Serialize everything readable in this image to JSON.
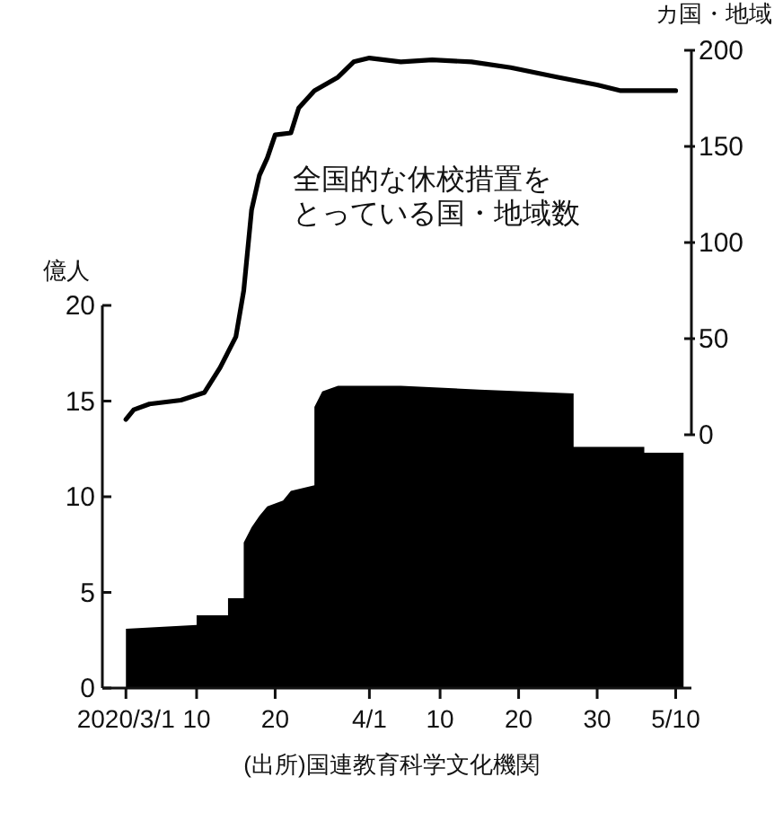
{
  "chart_data": {
    "type": "area",
    "ylabel": "億人",
    "y2label": "カ国・地域",
    "xlim": [
      "2020-02-27",
      "2020-05-12"
    ],
    "xticks": [
      {
        "value": "2020-03-01",
        "label": "2020/3/1"
      },
      {
        "value": "2020-03-10",
        "label": "10"
      },
      {
        "value": "2020-03-20",
        "label": "20"
      },
      {
        "value": "2020-04-01",
        "label": "4/1"
      },
      {
        "value": "2020-04-10",
        "label": "10"
      },
      {
        "value": "2020-04-20",
        "label": "20"
      },
      {
        "value": "2020-04-30",
        "label": "30"
      },
      {
        "value": "2020-05-10",
        "label": "5/10"
      }
    ],
    "ylim": [
      0,
      20
    ],
    "yticks": [
      0,
      5,
      10,
      15,
      20
    ],
    "y2lim": [
      0,
      200
    ],
    "y2ticks": [
      0,
      50,
      100,
      150,
      200
    ],
    "series": [
      {
        "color": "#000000",
        "x": [
          "2020-03-01",
          "2020-03-10",
          "2020-03-10",
          "2020-03-14",
          "2020-03-14",
          "2020-03-16",
          "2020-03-16",
          "2020-03-17",
          "2020-03-18",
          "2020-03-19",
          "2020-03-21",
          "2020-03-22",
          "2020-03-25",
          "2020-03-25",
          "2020-03-26",
          "2020-03-28",
          "2020-04-05",
          "2020-04-15",
          "2020-04-27",
          "2020-04-27",
          "2020-05-06",
          "2020-05-06",
          "2020-05-11"
        ],
        "values": [
          3.1,
          3.3,
          3.8,
          3.8,
          4.7,
          4.7,
          7.6,
          8.4,
          9.0,
          9.5,
          9.8,
          10.3,
          10.6,
          14.7,
          15.5,
          15.8,
          15.8,
          15.6,
          15.4,
          12.6,
          12.6,
          12.3,
          12.3
        ]
      },
      {
        "type": "line",
        "axis": "y2",
        "name": "全国的な休校措置をとっている国・地域数",
        "color": "#000000",
        "x": [
          "2020-03-01",
          "2020-03-02",
          "2020-03-04",
          "2020-03-08",
          "2020-03-11",
          "2020-03-13",
          "2020-03-15",
          "2020-03-16",
          "2020-03-17",
          "2020-03-18",
          "2020-03-19",
          "2020-03-20",
          "2020-03-22",
          "2020-03-23",
          "2020-03-25",
          "2020-03-28",
          "2020-03-30",
          "2020-04-01",
          "2020-04-05",
          "2020-04-09",
          "2020-04-14",
          "2020-04-19",
          "2020-04-25",
          "2020-04-30",
          "2020-05-03",
          "2020-05-10"
        ],
        "values": [
          8,
          13,
          16,
          18,
          22,
          35,
          51,
          75,
          117,
          135,
          144,
          156,
          157,
          170,
          179,
          186,
          194,
          196,
          194,
          195,
          194,
          191,
          186,
          182,
          179,
          179
        ]
      }
    ],
    "annotations": [
      "(出所)国連教育科学文化機関"
    ]
  }
}
